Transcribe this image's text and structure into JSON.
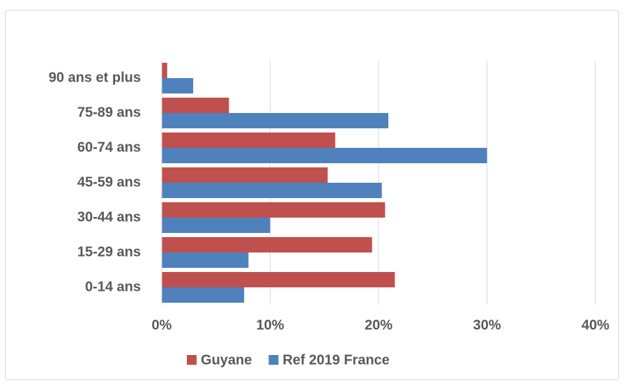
{
  "chart_data": {
    "type": "bar",
    "orientation": "horizontal",
    "categories": [
      "0-14 ans",
      "15-29 ans",
      "30-44 ans",
      "45-59 ans",
      "60-74 ans",
      "75-89 ans",
      "90 ans et plus"
    ],
    "series": [
      {
        "name": "Guyane",
        "color": "#c0504d",
        "values": [
          21.5,
          19.4,
          20.6,
          15.3,
          16.0,
          6.2,
          0.5
        ]
      },
      {
        "name": "Ref 2019 France",
        "color": "#4f81bd",
        "values": [
          7.6,
          8.0,
          10.0,
          20.3,
          30.0,
          20.9,
          2.9
        ]
      }
    ],
    "xlim": [
      0,
      40
    ],
    "xticks": [
      {
        "value": 0,
        "label": "0%"
      },
      {
        "value": 10,
        "label": "10%"
      },
      {
        "value": 20,
        "label": "20%"
      },
      {
        "value": 30,
        "label": "30%"
      },
      {
        "value": 40,
        "label": "40%"
      }
    ],
    "grid": true,
    "legend": "bottom"
  }
}
